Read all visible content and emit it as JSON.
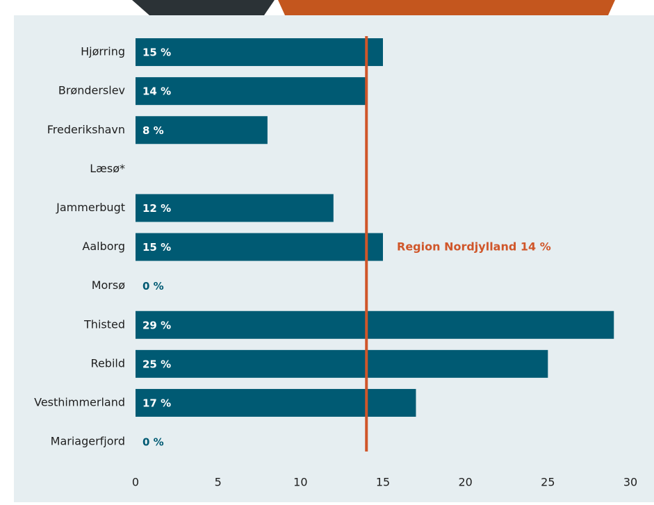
{
  "chart_data": {
    "type": "hbar",
    "categories": [
      "Hjørring",
      "Brønderslev",
      "Frederikshavn",
      "Læsø*",
      "Jammerbugt",
      "Aalborg",
      "Morsø",
      "Thisted",
      "Rebild",
      "Vesthimmerland",
      "Mariagerfjord"
    ],
    "values": [
      15,
      14,
      8,
      null,
      12,
      15,
      0,
      29,
      25,
      17,
      0
    ],
    "value_labels": [
      "15 %",
      "14 %",
      "8 %",
      null,
      "12 %",
      "15 %",
      "0 %",
      "29 %",
      "25 %",
      "17 %",
      "0 %"
    ],
    "color": "#005a73",
    "xlim": [
      0,
      30
    ],
    "xticks": [
      0,
      5,
      10,
      15,
      20,
      25,
      30
    ],
    "reference_line": {
      "value": 14,
      "label": "Region Nordjylland 14 %",
      "color": "#d0562a"
    }
  }
}
